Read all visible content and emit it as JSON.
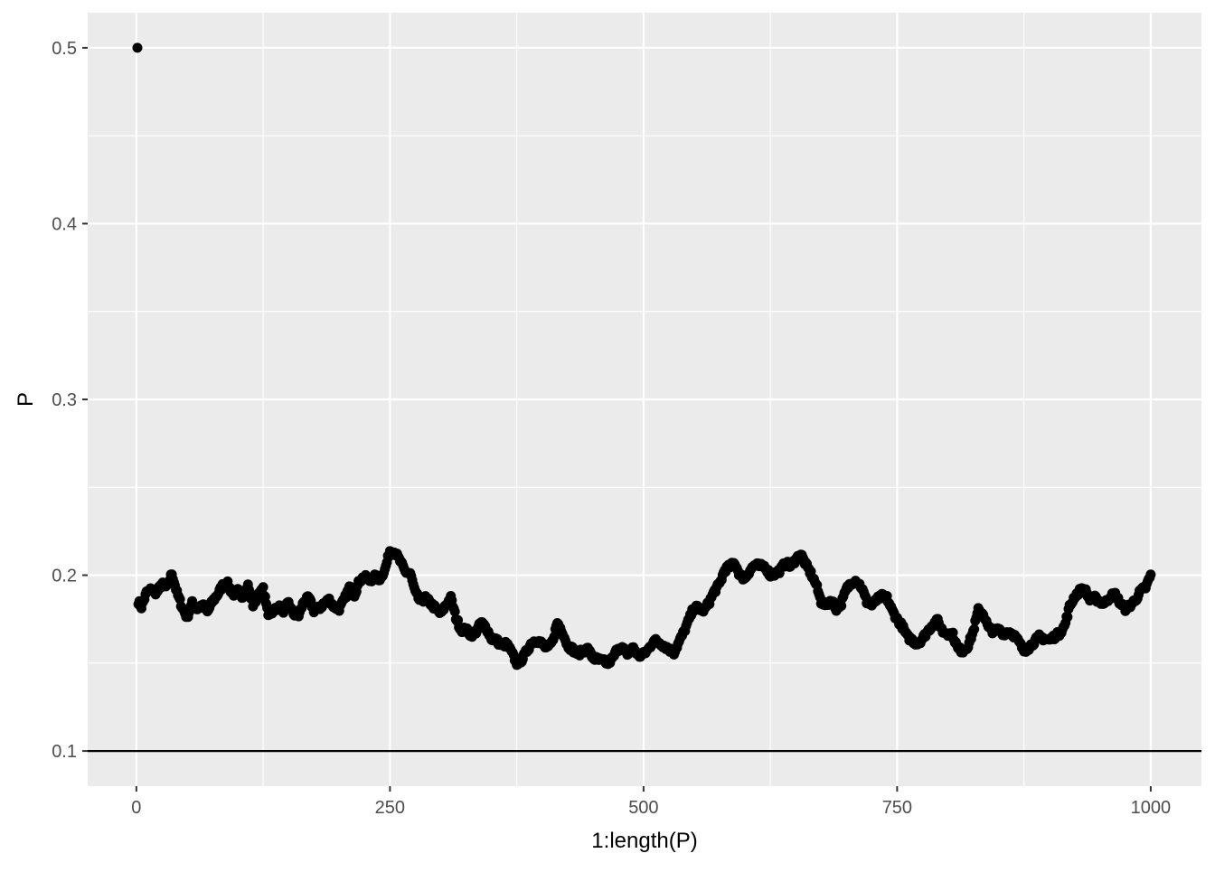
{
  "chart_data": {
    "type": "scatter",
    "title": "",
    "xlabel": "1:length(P)",
    "ylabel": "P",
    "xlim": [
      -48,
      1050
    ],
    "ylim": [
      0.08,
      0.52
    ],
    "x_ticks": [
      0,
      250,
      500,
      750,
      1000
    ],
    "x_tick_labels": [
      "0",
      "250",
      "500",
      "750",
      "1000"
    ],
    "y_ticks": [
      0.1,
      0.2,
      0.3,
      0.4,
      0.5
    ],
    "y_tick_labels": [
      "0.1",
      "0.2",
      "0.3",
      "0.4",
      "0.5"
    ],
    "grid": true,
    "legend": "none",
    "hline": {
      "y": 0.1,
      "color": "#000000"
    },
    "panel_color": "#ebebeb",
    "grid_color": "#ffffff",
    "point_color": "#000000",
    "n_points": 1000,
    "first_point": {
      "x": 1,
      "y": 0.5
    },
    "path_keypoints": [
      [
        2,
        0.185
      ],
      [
        5,
        0.182
      ],
      [
        10,
        0.19
      ],
      [
        15,
        0.192
      ],
      [
        20,
        0.19
      ],
      [
        25,
        0.195
      ],
      [
        30,
        0.193
      ],
      [
        35,
        0.201
      ],
      [
        40,
        0.19
      ],
      [
        45,
        0.182
      ],
      [
        50,
        0.176
      ],
      [
        55,
        0.184
      ],
      [
        60,
        0.181
      ],
      [
        65,
        0.183
      ],
      [
        70,
        0.179
      ],
      [
        75,
        0.185
      ],
      [
        80,
        0.189
      ],
      [
        85,
        0.194
      ],
      [
        90,
        0.195
      ],
      [
        95,
        0.189
      ],
      [
        100,
        0.191
      ],
      [
        105,
        0.188
      ],
      [
        110,
        0.194
      ],
      [
        115,
        0.183
      ],
      [
        120,
        0.188
      ],
      [
        125,
        0.192
      ],
      [
        130,
        0.178
      ],
      [
        135,
        0.18
      ],
      [
        140,
        0.182
      ],
      [
        145,
        0.18
      ],
      [
        150,
        0.184
      ],
      [
        155,
        0.178
      ],
      [
        160,
        0.177
      ],
      [
        165,
        0.185
      ],
      [
        170,
        0.187
      ],
      [
        175,
        0.18
      ],
      [
        180,
        0.181
      ],
      [
        185,
        0.184
      ],
      [
        190,
        0.186
      ],
      [
        195,
        0.182
      ],
      [
        200,
        0.181
      ],
      [
        205,
        0.186
      ],
      [
        210,
        0.193
      ],
      [
        215,
        0.189
      ],
      [
        220,
        0.197
      ],
      [
        225,
        0.199
      ],
      [
        230,
        0.197
      ],
      [
        235,
        0.199
      ],
      [
        240,
        0.198
      ],
      [
        245,
        0.203
      ],
      [
        250,
        0.214
      ],
      [
        255,
        0.213
      ],
      [
        260,
        0.208
      ],
      [
        265,
        0.202
      ],
      [
        270,
        0.201
      ],
      [
        275,
        0.19
      ],
      [
        280,
        0.185
      ],
      [
        285,
        0.187
      ],
      [
        290,
        0.184
      ],
      [
        295,
        0.181
      ],
      [
        300,
        0.178
      ],
      [
        305,
        0.183
      ],
      [
        310,
        0.187
      ],
      [
        315,
        0.176
      ],
      [
        320,
        0.169
      ],
      [
        325,
        0.169
      ],
      [
        330,
        0.166
      ],
      [
        335,
        0.168
      ],
      [
        340,
        0.173
      ],
      [
        345,
        0.17
      ],
      [
        350,
        0.164
      ],
      [
        355,
        0.163
      ],
      [
        360,
        0.16
      ],
      [
        365,
        0.161
      ],
      [
        370,
        0.156
      ],
      [
        375,
        0.15
      ],
      [
        380,
        0.152
      ],
      [
        385,
        0.157
      ],
      [
        390,
        0.162
      ],
      [
        395,
        0.163
      ],
      [
        400,
        0.161
      ],
      [
        405,
        0.158
      ],
      [
        410,
        0.162
      ],
      [
        415,
        0.173
      ],
      [
        420,
        0.168
      ],
      [
        425,
        0.16
      ],
      [
        430,
        0.158
      ],
      [
        435,
        0.155
      ],
      [
        440,
        0.157
      ],
      [
        445,
        0.158
      ],
      [
        450,
        0.153
      ],
      [
        455,
        0.152
      ],
      [
        460,
        0.151
      ],
      [
        465,
        0.15
      ],
      [
        470,
        0.153
      ],
      [
        475,
        0.159
      ],
      [
        480,
        0.158
      ],
      [
        485,
        0.155
      ],
      [
        490,
        0.159
      ],
      [
        495,
        0.154
      ],
      [
        500,
        0.155
      ],
      [
        505,
        0.158
      ],
      [
        510,
        0.163
      ],
      [
        515,
        0.162
      ],
      [
        520,
        0.16
      ],
      [
        525,
        0.158
      ],
      [
        530,
        0.156
      ],
      [
        535,
        0.162
      ],
      [
        540,
        0.168
      ],
      [
        545,
        0.175
      ],
      [
        550,
        0.182
      ],
      [
        555,
        0.181
      ],
      [
        560,
        0.18
      ],
      [
        565,
        0.185
      ],
      [
        570,
        0.191
      ],
      [
        575,
        0.195
      ],
      [
        580,
        0.203
      ],
      [
        585,
        0.205
      ],
      [
        590,
        0.207
      ],
      [
        595,
        0.2
      ],
      [
        600,
        0.198
      ],
      [
        605,
        0.203
      ],
      [
        610,
        0.206
      ],
      [
        615,
        0.205
      ],
      [
        620,
        0.205
      ],
      [
        625,
        0.2
      ],
      [
        630,
        0.201
      ],
      [
        635,
        0.203
      ],
      [
        640,
        0.207
      ],
      [
        645,
        0.205
      ],
      [
        650,
        0.209
      ],
      [
        655,
        0.212
      ],
      [
        660,
        0.206
      ],
      [
        665,
        0.201
      ],
      [
        670,
        0.195
      ],
      [
        675,
        0.185
      ],
      [
        680,
        0.183
      ],
      [
        685,
        0.186
      ],
      [
        690,
        0.181
      ],
      [
        695,
        0.184
      ],
      [
        700,
        0.192
      ],
      [
        705,
        0.196
      ],
      [
        710,
        0.197
      ],
      [
        715,
        0.193
      ],
      [
        720,
        0.185
      ],
      [
        725,
        0.183
      ],
      [
        730,
        0.186
      ],
      [
        735,
        0.188
      ],
      [
        740,
        0.187
      ],
      [
        745,
        0.18
      ],
      [
        750,
        0.175
      ],
      [
        755,
        0.171
      ],
      [
        760,
        0.165
      ],
      [
        765,
        0.163
      ],
      [
        770,
        0.161
      ],
      [
        775,
        0.164
      ],
      [
        780,
        0.168
      ],
      [
        785,
        0.172
      ],
      [
        790,
        0.174
      ],
      [
        795,
        0.168
      ],
      [
        800,
        0.167
      ],
      [
        805,
        0.166
      ],
      [
        810,
        0.158
      ],
      [
        815,
        0.157
      ],
      [
        820,
        0.16
      ],
      [
        825,
        0.168
      ],
      [
        830,
        0.18
      ],
      [
        835,
        0.178
      ],
      [
        840,
        0.17
      ],
      [
        845,
        0.168
      ],
      [
        850,
        0.169
      ],
      [
        855,
        0.167
      ],
      [
        860,
        0.168
      ],
      [
        865,
        0.166
      ],
      [
        870,
        0.162
      ],
      [
        875,
        0.157
      ],
      [
        880,
        0.159
      ],
      [
        885,
        0.162
      ],
      [
        890,
        0.165
      ],
      [
        895,
        0.164
      ],
      [
        900,
        0.163
      ],
      [
        905,
        0.165
      ],
      [
        910,
        0.167
      ],
      [
        915,
        0.171
      ],
      [
        920,
        0.182
      ],
      [
        925,
        0.188
      ],
      [
        930,
        0.191
      ],
      [
        935,
        0.192
      ],
      [
        940,
        0.186
      ],
      [
        945,
        0.187
      ],
      [
        950,
        0.185
      ],
      [
        955,
        0.184
      ],
      [
        960,
        0.188
      ],
      [
        965,
        0.189
      ],
      [
        970,
        0.184
      ],
      [
        975,
        0.181
      ],
      [
        980,
        0.183
      ],
      [
        985,
        0.186
      ],
      [
        990,
        0.191
      ],
      [
        995,
        0.193
      ],
      [
        1000,
        0.2
      ]
    ]
  }
}
